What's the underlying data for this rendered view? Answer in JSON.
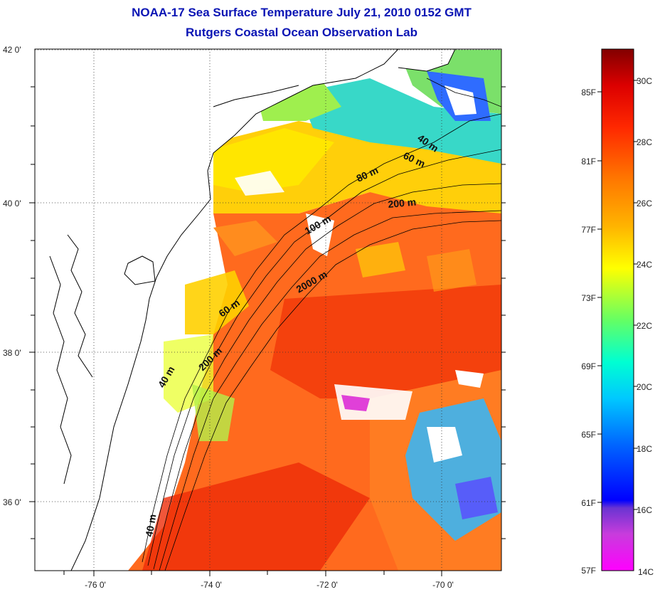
{
  "title": {
    "line1": "NOAA-17 Sea Surface Temperature July 21, 2010 0152 GMT",
    "line2": "Rutgers Coastal Ocean Observation Lab"
  },
  "map": {
    "lon_ticks": [
      "-76 0'",
      "-74 0'",
      "-72 0'",
      "-70 0'"
    ],
    "lat_ticks": [
      "42 0'",
      "40 0'",
      "38 0'",
      "36 0'"
    ],
    "contours": [
      "40 m",
      "60 m",
      "80 m",
      "200 m",
      "100 m",
      "2000 m",
      "60 m",
      "200 m",
      "40 m",
      "40 m"
    ]
  },
  "colorbar": {
    "celsius": [
      "30C",
      "28C",
      "26C",
      "24C",
      "22C",
      "20C",
      "18C",
      "16C",
      "14C"
    ],
    "fahrenheit": [
      "85F",
      "81F",
      "77F",
      "73F",
      "69F",
      "65F",
      "61F",
      "57F"
    ],
    "colors": [
      "#ff00ff",
      "#8c3cd2",
      "#0000ff",
      "#0064ff",
      "#00c8ff",
      "#00ffc8",
      "#64ff64",
      "#ffff00",
      "#ffb400",
      "#ff7800",
      "#ff3200",
      "#e60000",
      "#8c0000"
    ]
  }
}
